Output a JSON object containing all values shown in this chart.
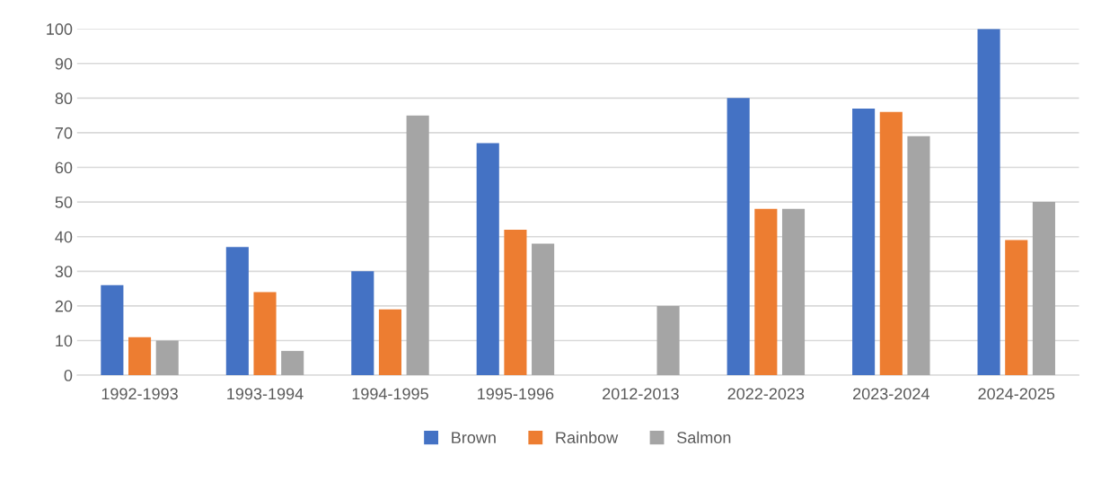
{
  "chart_data": {
    "type": "bar",
    "categories": [
      "1992-1993",
      "1993-1994",
      "1994-1995",
      "1995-1996",
      "2012-2013",
      "2022-2023",
      "2023-2024",
      "2024-2025"
    ],
    "series": [
      {
        "name": "Brown",
        "color": "#4472c4",
        "values": [
          26,
          37,
          30,
          67,
          null,
          80,
          77,
          100
        ]
      },
      {
        "name": "Rainbow",
        "color": "#ed7d31",
        "values": [
          11,
          24,
          19,
          42,
          null,
          48,
          76,
          39
        ]
      },
      {
        "name": "Salmon",
        "color": "#a5a5a5",
        "values": [
          10,
          7,
          75,
          38,
          20,
          48,
          69,
          50
        ]
      }
    ],
    "ylim": [
      0,
      100
    ],
    "yticks": [
      0,
      10,
      20,
      30,
      40,
      50,
      60,
      70,
      80,
      90,
      100
    ],
    "grid": "y",
    "legend": "bottom"
  }
}
